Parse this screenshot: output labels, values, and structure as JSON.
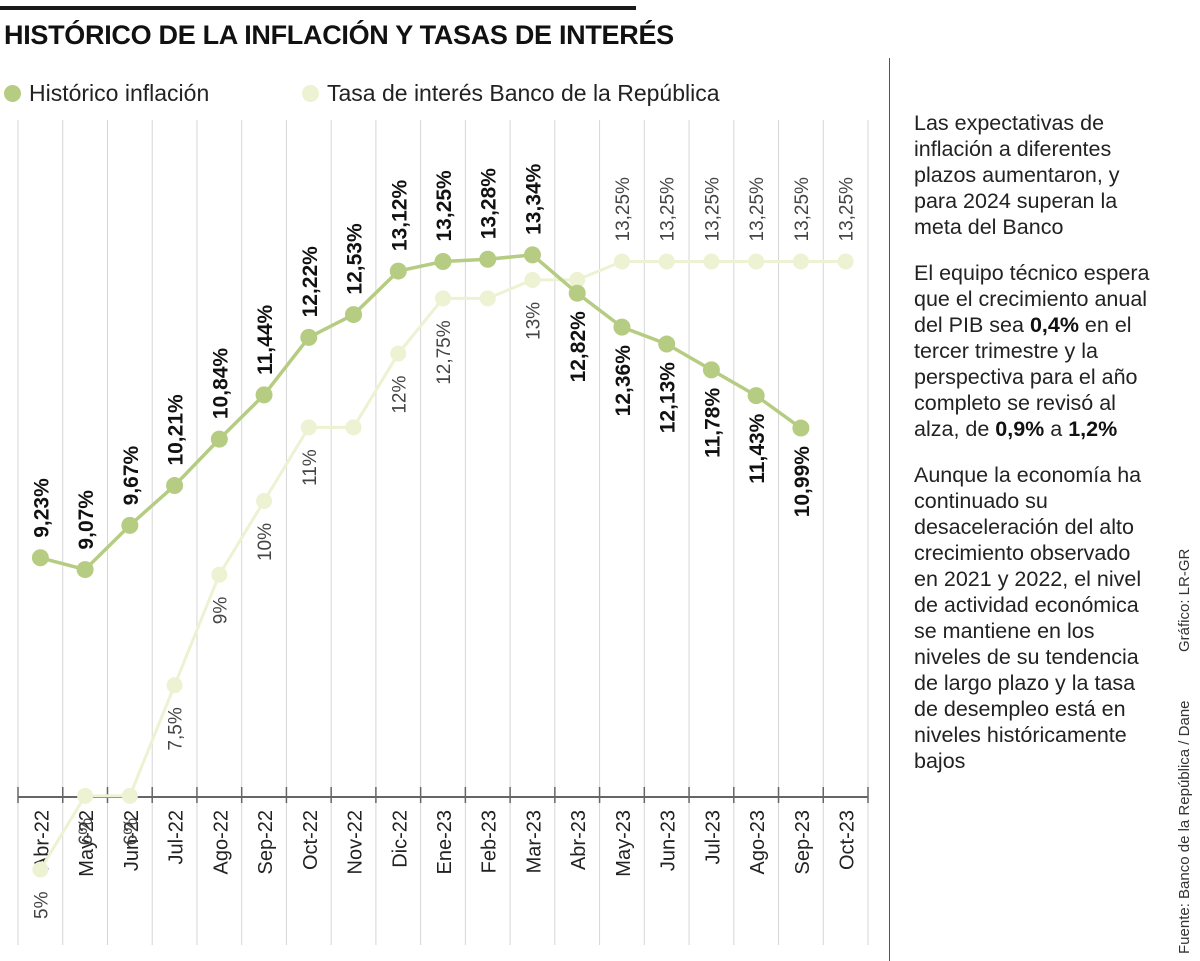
{
  "title": "HISTÓRICO DE LA INFLACIÓN Y TASAS DE INTERÉS",
  "legend": [
    {
      "label": "Histórico inflación",
      "color": "#b5cc82"
    },
    {
      "label": "Tasa de interés Banco de la República",
      "color": "#ecf2d2"
    }
  ],
  "sidebar": {
    "p1": "Las expectativas de inflación a diferentes plazos aumentaron, y para 2024 superan la meta del Banco",
    "p2_a": "El equipo técnico espera que el crecimiento anual del PIB sea ",
    "p2_b": "0,4%",
    "p2_c": " en el tercer trimestre y la perspectiva para el año completo se revisó al alza, de ",
    "p2_d": "0,9%",
    "p2_e": " a ",
    "p2_f": "1,2%",
    "p3": "Aunque la economía ha continuado su desaceleración del alto crecimiento observado en 2021 y 2022, el nivel de actividad económica se mantiene en los niveles de su tendencia de largo plazo y la tasa de desempleo está en niveles históricamente bajos"
  },
  "credits": {
    "grafico": "Gráfico: LR-GR",
    "fuente": "Fuente: Banco de la República / Dane"
  },
  "chart_data": {
    "type": "line",
    "categories": [
      "Abr-22",
      "May-22",
      "Jun-22",
      "Jul-22",
      "Ago-22",
      "Sep-22",
      "Oct-22",
      "Nov-22",
      "Dic-22",
      "Ene-23",
      "Feb-23",
      "Mar-23",
      "Abr-23",
      "May-23",
      "Jun-23",
      "Jul-23",
      "Ago-23",
      "Sep-23",
      "Oct-23"
    ],
    "series": [
      {
        "name": "Histórico inflación",
        "color": "#b5cc82",
        "values": [
          9.23,
          9.07,
          9.67,
          10.21,
          10.84,
          11.44,
          12.22,
          12.53,
          13.12,
          13.25,
          13.28,
          13.34,
          12.82,
          12.36,
          12.13,
          11.78,
          11.43,
          10.99,
          null
        ],
        "labels": [
          "9,23%",
          "9,07%",
          "9,67%",
          "10,21%",
          "10,84%",
          "11,44%",
          "12,22%",
          "12,53%",
          "13,12%",
          "13,25%",
          "13,28%",
          "13,34%",
          "12,82%",
          "12,36%",
          "12,13%",
          "11,78%",
          "11,43%",
          "10,99%",
          null
        ]
      },
      {
        "name": "Tasa de interés Banco de la República",
        "color": "#ecf2d2",
        "values": [
          5,
          6,
          6,
          7.5,
          9,
          10,
          11,
          11,
          12,
          12.75,
          12.75,
          13,
          13,
          13.25,
          13.25,
          13.25,
          13.25,
          13.25,
          13.25
        ],
        "labels": [
          "5%",
          "6%",
          "6%",
          "7,5%",
          "9%",
          "10%",
          "11%",
          null,
          "12%",
          "12,75%",
          null,
          "13%",
          null,
          "13,25%",
          "13,25%",
          "13,25%",
          "13,25%",
          "13,25%",
          "13,25%"
        ]
      }
    ],
    "xlabel": "",
    "ylabel": "",
    "ylim": [
      3,
      14.5
    ],
    "grid": "vertical",
    "legend_position": "top-left"
  }
}
